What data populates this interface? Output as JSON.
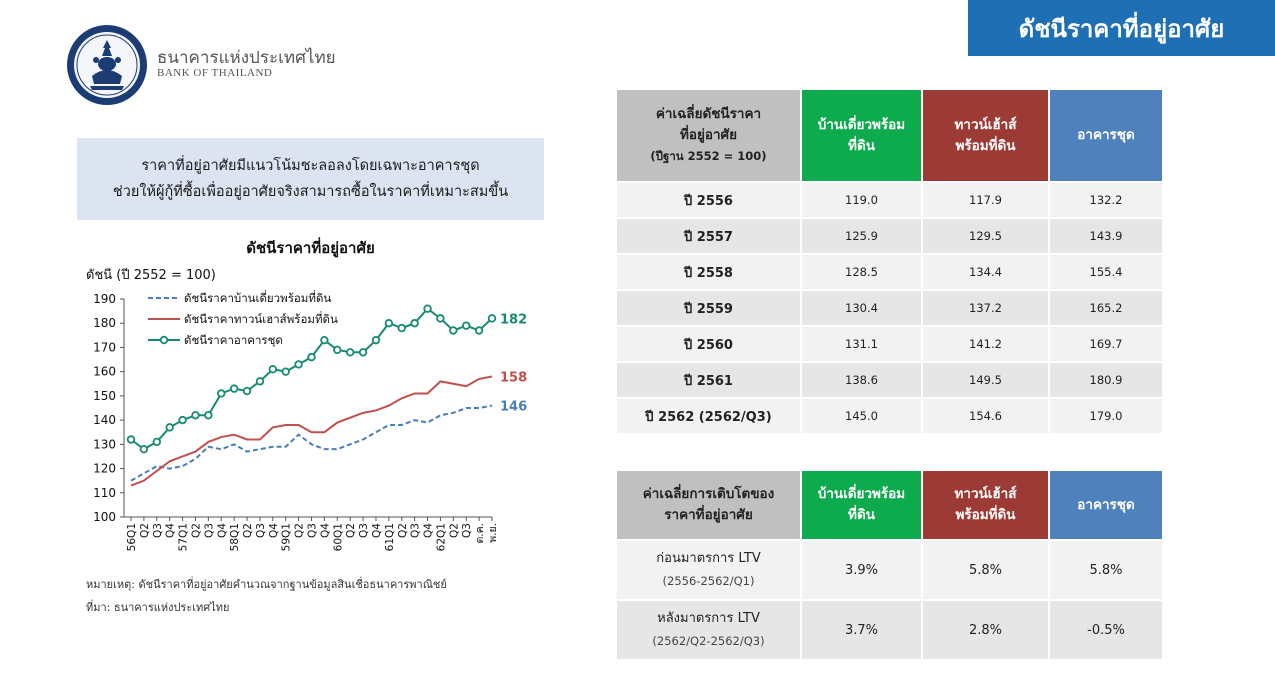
{
  "header": {
    "title": "ดัชนีราคาที่อยู่อาศัย",
    "org_th": "ธนาคารแห่งประเทศไทย",
    "org_en": "BANK OF THAILAND"
  },
  "headline": {
    "line1": "ราคาที่อยู่อาศัยมีแนวโน้มชะลอลงโดยเฉพาะอาคารชุด",
    "line2": "ช่วยให้ผู้กู้ที่ซื้อเพื่ออยู่อาศัยจริงสามารถซื้อในราคาที่เหมาะสมขึ้น"
  },
  "footnotes": {
    "note": "หมายเหตุ:  ดัชนีราคาที่อยู่อาศัยคำนวณจากฐานข้อมูลสินเชื่อธนาคารพาณิชย์",
    "source": "ที่มา: ธนาคารแห่งประเทศไทย"
  },
  "chart_data": {
    "type": "line",
    "title": "ดัชนีราคาที่อยู่อาศัย",
    "ylabel": "ดัชนี (ปี 2552 = 100)",
    "xlabel": "",
    "ylim": [
      100,
      190
    ],
    "yticks": [
      100,
      110,
      120,
      130,
      140,
      150,
      160,
      170,
      180,
      190
    ],
    "grid": false,
    "legend_position": "top-left",
    "x": [
      "56Q1",
      "Q2",
      "Q3",
      "Q4",
      "57Q1",
      "Q2",
      "Q3",
      "Q4",
      "58Q1",
      "Q2",
      "Q3",
      "Q4",
      "59Q1",
      "Q2",
      "Q3",
      "Q4",
      "60Q1",
      "Q2",
      "Q3",
      "Q4",
      "61Q1",
      "Q2",
      "Q3",
      "Q4",
      "62Q1",
      "Q2",
      "Q3",
      "ต.ค.",
      "พ.ย."
    ],
    "series": [
      {
        "name": "ดัชนีราคาบ้านเดี่ยวพร้อมที่ดิน",
        "color": "#4a7ebb",
        "dash": "dashed",
        "end_label": "146",
        "values": [
          115,
          118,
          121,
          120,
          121,
          124,
          129,
          128,
          130,
          127,
          128,
          129,
          129,
          134,
          130,
          128,
          128,
          130,
          132,
          135,
          138,
          138,
          140,
          139,
          142,
          143,
          145,
          145,
          146
        ]
      },
      {
        "name": "ดัชนีราคาทาวน์เฮาส์พร้อมที่ดิน",
        "color": "#c0504d",
        "dash": "solid",
        "end_label": "158",
        "values": [
          113,
          115,
          119,
          123,
          125,
          127,
          131,
          133,
          134,
          132,
          132,
          137,
          138,
          138,
          135,
          135,
          139,
          141,
          143,
          144,
          146,
          149,
          151,
          151,
          156,
          155,
          154,
          157,
          158
        ]
      },
      {
        "name": "ดัชนีราคาอาคารชุด",
        "color": "#178a74",
        "dash": "solid",
        "markers": true,
        "end_label": "182",
        "values": [
          132,
          128,
          131,
          137,
          140,
          142,
          142,
          151,
          153,
          152,
          156,
          161,
          160,
          163,
          166,
          173,
          169,
          168,
          168,
          173,
          180,
          178,
          180,
          186,
          182,
          177,
          179,
          177,
          182
        ]
      }
    ]
  },
  "table_index": {
    "headers": {
      "first_line1": "ค่าเฉลี่ยดัชนีราคา",
      "first_line2": "ที่อยู่อาศัย",
      "first_line3": "(ปีฐาน 2552 = 100)",
      "col1_line1": "บ้านเดี่ยวพร้อม",
      "col1_line2": "ที่ดิน",
      "col2_line1": "ทาวน์เฮ้าส์",
      "col2_line2": "พร้อมที่ดิน",
      "col3": "อาคารชุด"
    },
    "rows": [
      {
        "label": "ปี 2556",
        "c1": "119.0",
        "c2": "117.9",
        "c3": "132.2"
      },
      {
        "label": "ปี 2557",
        "c1": "125.9",
        "c2": "129.5",
        "c3": "143.9"
      },
      {
        "label": "ปี 2558",
        "c1": "128.5",
        "c2": "134.4",
        "c3": "155.4"
      },
      {
        "label": "ปี 2559",
        "c1": "130.4",
        "c2": "137.2",
        "c3": "165.2"
      },
      {
        "label": "ปี 2560",
        "c1": "131.1",
        "c2": "141.2",
        "c3": "169.7"
      },
      {
        "label": "ปี 2561",
        "c1": "138.6",
        "c2": "149.5",
        "c3": "180.9"
      },
      {
        "label": "ปี 2562 (2562/Q3)",
        "c1": "145.0",
        "c2": "154.6",
        "c3": "179.0"
      }
    ]
  },
  "table_growth": {
    "headers": {
      "first_line1": "ค่าเฉลี่ยการเติบโตของ",
      "first_line2": "ราคาที่อยู่อาศัย",
      "col1_line1": "บ้านเดี่ยวพร้อม",
      "col1_line2": "ที่ดิน",
      "col2_line1": "ทาวน์เฮ้าส์",
      "col2_line2": "พร้อมที่ดิน",
      "col3": "อาคารชุด"
    },
    "rows": [
      {
        "label": "ก่อนมาตรการ LTV",
        "sub": "(2556-2562/Q1)",
        "c1": "3.9%",
        "c2": "5.8%",
        "c3": "5.8%"
      },
      {
        "label": "หลังมาตรการ LTV",
        "sub": "(2562/Q2-2562/Q3)",
        "c1": "3.7%",
        "c2": "2.8%",
        "c3": "-0.5%"
      }
    ]
  }
}
